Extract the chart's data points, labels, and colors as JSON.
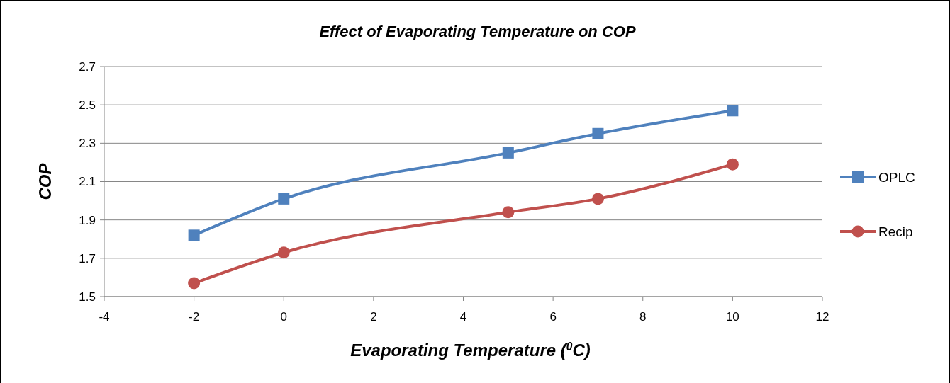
{
  "chart_data": {
    "type": "line",
    "title": "Effect of Evaporating Temperature on COP",
    "xlabel": "Evaporating Temperature ($^{0}$C)",
    "ylabel": "COP",
    "x": [
      -2,
      0,
      5,
      7,
      10
    ],
    "series": [
      {
        "name": "OPLC",
        "color": "#4f81bd",
        "marker": "square",
        "values": [
          1.82,
          2.01,
          2.25,
          2.35,
          2.47
        ]
      },
      {
        "name": "Recip",
        "color": "#c0504d",
        "marker": "circle",
        "values": [
          1.57,
          1.73,
          1.94,
          2.01,
          2.19
        ]
      }
    ],
    "xlim": [
      -4,
      12
    ],
    "xticks": [
      -4,
      -2,
      0,
      2,
      4,
      6,
      8,
      10,
      12
    ],
    "ylim": [
      1.5,
      2.7
    ],
    "yticks": [
      1.5,
      1.7,
      1.9,
      2.1,
      2.3,
      2.5,
      2.7
    ],
    "grid": "y",
    "legend": "right"
  }
}
